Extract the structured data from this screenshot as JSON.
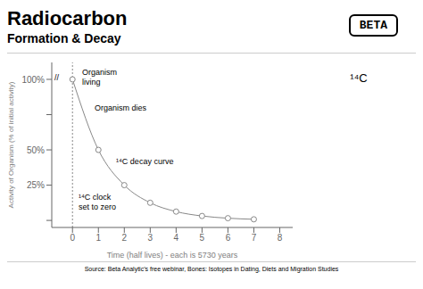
{
  "chart_data": {
    "type": "line",
    "title": "Radiocarbon",
    "subtitle": "Formation & Decay",
    "x": [
      0,
      1,
      2,
      3,
      4,
      5,
      6,
      7
    ],
    "values": [
      100,
      50,
      25,
      12.5,
      6.25,
      3.125,
      1.5625,
      0.78125
    ],
    "color": "#888888",
    "marker": "circle",
    "line_style": "solid",
    "x_label": "Time (half lives) - each is 5730 years",
    "y_label": "Activity of Organism (% of initial activity)",
    "xlim": [
      -0.8,
      8.5
    ],
    "xticks": [
      0,
      1,
      2,
      3,
      4,
      5,
      6,
      7,
      8
    ],
    "ylim": [
      -5,
      112
    ],
    "yticks": [
      {
        "value": 0,
        "label": null
      },
      {
        "value": 25,
        "label": "25%"
      },
      {
        "value": 50,
        "label": "50%"
      },
      {
        "value": 75,
        "label": null
      },
      {
        "value": 100,
        "label": "100%"
      }
    ],
    "grid": false,
    "annotations": [
      "Organism\nliving",
      "Organism dies",
      "¹⁴C decay curve",
      "¹⁴C clock\nset to zero",
      "//",
      "BETA",
      "¹⁴C",
      "Source: Beta Analytic’s free webinar, Bones: Isotopes in Dating, Diets and Migration Studies"
    ]
  }
}
